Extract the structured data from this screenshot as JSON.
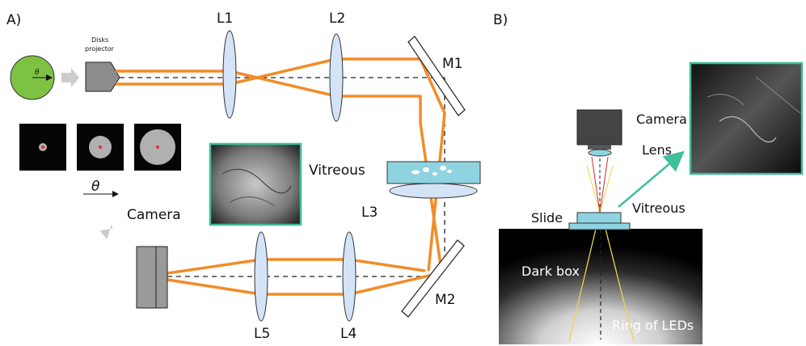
{
  "panels": {
    "a": "A)",
    "b": "B)"
  },
  "labels": {
    "lens1": "L1",
    "lens2": "L2",
    "lens3": "L3",
    "lens4": "L4",
    "lens5": "L5",
    "mirror1": "M1",
    "mirror2": "M2",
    "projector_line1": "Disks",
    "projector_line2": "projector",
    "vitreous_a": "Vitreous",
    "camera_a": "Camera",
    "theta": "θ",
    "camera_b": "Camera",
    "lens_b": "Lens",
    "vitreous_b": "Vitreous",
    "slide": "Slide",
    "dark_box": "Dark box",
    "ring": "Ring of LEDs"
  },
  "colors": {
    "beam": "#f28c28",
    "disk": "#7dc242",
    "lens_fill": "#d4e3f5",
    "vitreous_fill": "#8fd3e0",
    "inset_border": "#3fbf9a"
  },
  "disk_sizes_caption": "θ",
  "icons": [
    "disk-icon",
    "projector-icon",
    "camera-icon",
    "arrow-icon"
  ]
}
